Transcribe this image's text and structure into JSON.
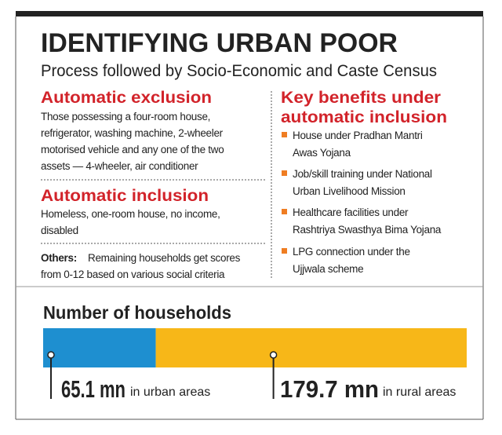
{
  "header": {
    "title": "IDENTIFYING URBAN POOR",
    "subtitle": "Process followed by Socio-Economic and Caste Census"
  },
  "exclusion": {
    "heading": "Automatic exclusion",
    "lines": [
      "Those possessing a four-room house,",
      "refrigerator, washing machine, 2-wheeler",
      "motorised vehicle and any one of the two",
      "assets — 4-wheeler, air conditioner"
    ]
  },
  "inclusion": {
    "heading": "Automatic inclusion",
    "lines": [
      "Homeless, one-room house, no income,",
      "disabled"
    ]
  },
  "others": {
    "label": "Others:",
    "lines": [
      "Remaining households get scores",
      "from 0-12 based on various social criteria"
    ]
  },
  "benefits": {
    "heading": [
      "Key benefits under",
      "automatic inclusion"
    ],
    "items": [
      [
        "House under Pradhan Mantri",
        "Awas Yojana"
      ],
      [
        "Job/skill training under National",
        "Urban Livelihood Mission"
      ],
      [
        "Healthcare facilities under",
        "Rashtriya Swasthya Bima Yojana"
      ],
      [
        "LPG connection under the",
        "Ujjwala scheme"
      ]
    ]
  },
  "households": {
    "title": "Number of households",
    "segments": [
      {
        "value": 65.1,
        "value_label": "65.1 mn",
        "text": "in urban areas",
        "color": "#1e8fd0"
      },
      {
        "value": 179.7,
        "value_label": "179.7 mn",
        "text": "in rural areas",
        "color": "#f7b718"
      }
    ]
  }
}
